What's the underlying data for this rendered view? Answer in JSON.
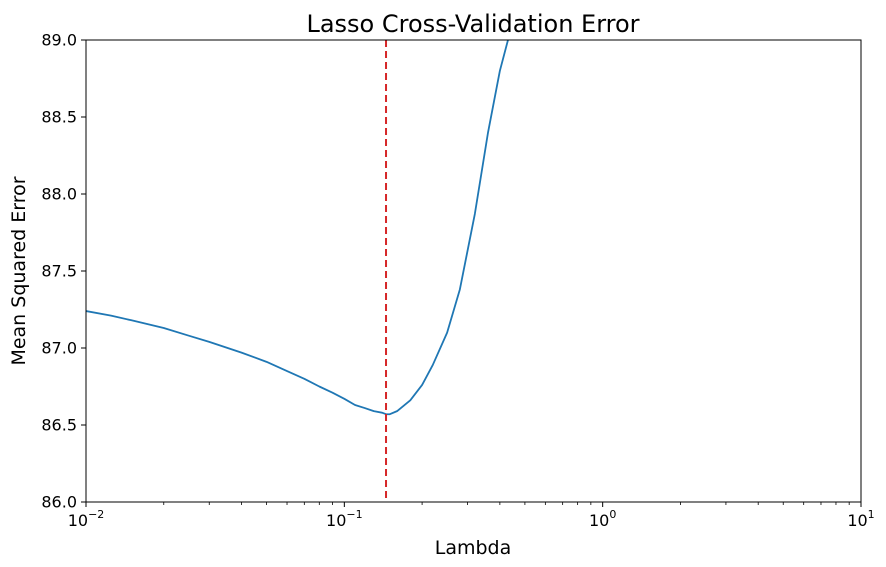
{
  "chart_data": {
    "type": "line",
    "title": "Lasso Cross-Validation Error",
    "xlabel": "Lambda",
    "ylabel": "Mean Squared Error",
    "xscale": "log",
    "xlim": [
      0.01,
      10
    ],
    "ylim": [
      86.0,
      89.0
    ],
    "grid": false,
    "x_ticks": [
      {
        "value": 0.01,
        "base": "10",
        "exp": "−2"
      },
      {
        "value": 0.1,
        "base": "10",
        "exp": "−1"
      },
      {
        "value": 1,
        "base": "10",
        "exp": "0"
      },
      {
        "value": 10,
        "base": "10",
        "exp": "1"
      }
    ],
    "y_ticks": [
      "86.0",
      "86.5",
      "87.0",
      "87.5",
      "88.0",
      "88.5",
      "89.0"
    ],
    "series": [
      {
        "color": "#1f77b4",
        "x": [
          0.01,
          0.0125,
          0.015,
          0.02,
          0.025,
          0.03,
          0.04,
          0.05,
          0.06,
          0.07,
          0.08,
          0.09,
          0.1,
          0.11,
          0.12,
          0.13,
          0.14,
          0.145,
          0.15,
          0.16,
          0.18,
          0.2,
          0.22,
          0.25,
          0.28,
          0.32,
          0.36,
          0.4,
          0.43
        ],
        "y": [
          87.24,
          87.21,
          87.18,
          87.13,
          87.08,
          87.04,
          86.97,
          86.91,
          86.85,
          86.8,
          86.75,
          86.71,
          86.67,
          86.63,
          86.61,
          86.59,
          86.58,
          86.57,
          86.57,
          86.59,
          86.66,
          86.76,
          86.89,
          87.1,
          87.38,
          87.87,
          88.4,
          88.8,
          89.0
        ]
      }
    ],
    "vline": {
      "x": 0.145,
      "color": "#d62728",
      "style": "dashed"
    }
  }
}
